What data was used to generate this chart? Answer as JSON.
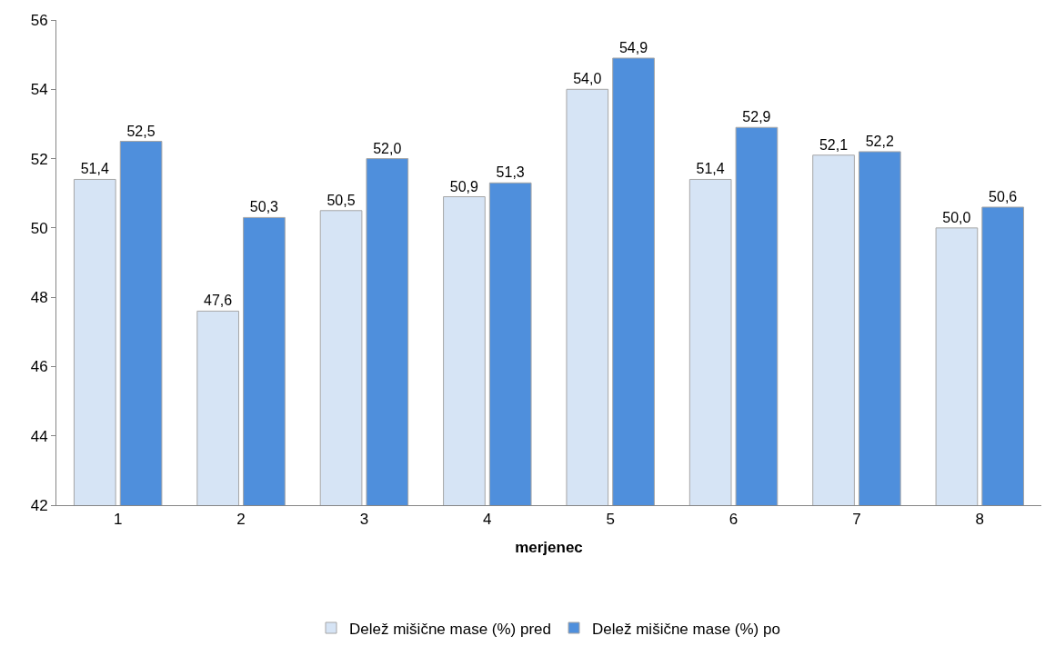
{
  "chart_data": {
    "type": "bar",
    "xlabel": "merjenec",
    "categories": [
      "1",
      "2",
      "3",
      "4",
      "5",
      "6",
      "7",
      "8"
    ],
    "series": [
      {
        "name": "Delež mišične mase (%) pred",
        "color": "#d6e4f5",
        "values": [
          51.4,
          47.6,
          50.5,
          50.9,
          54.0,
          51.4,
          52.1,
          50.0
        ],
        "value_labels": [
          "51,4",
          "47,6",
          "50,5",
          "50,9",
          "54,0",
          "51,4",
          "52,1",
          "50,0"
        ]
      },
      {
        "name": "Delež mišične mase (%) po",
        "color": "#4f8fdc",
        "values": [
          52.5,
          50.3,
          52.0,
          51.3,
          54.9,
          52.9,
          52.2,
          50.6
        ],
        "value_labels": [
          "52,5",
          "50,3",
          "52,0",
          "51,3",
          "54,9",
          "52,9",
          "52,2",
          "50,6"
        ]
      }
    ],
    "ylim": [
      42,
      56
    ],
    "yticks": [
      42,
      44,
      46,
      48,
      50,
      52,
      54,
      56
    ],
    "legend": "bottom"
  }
}
